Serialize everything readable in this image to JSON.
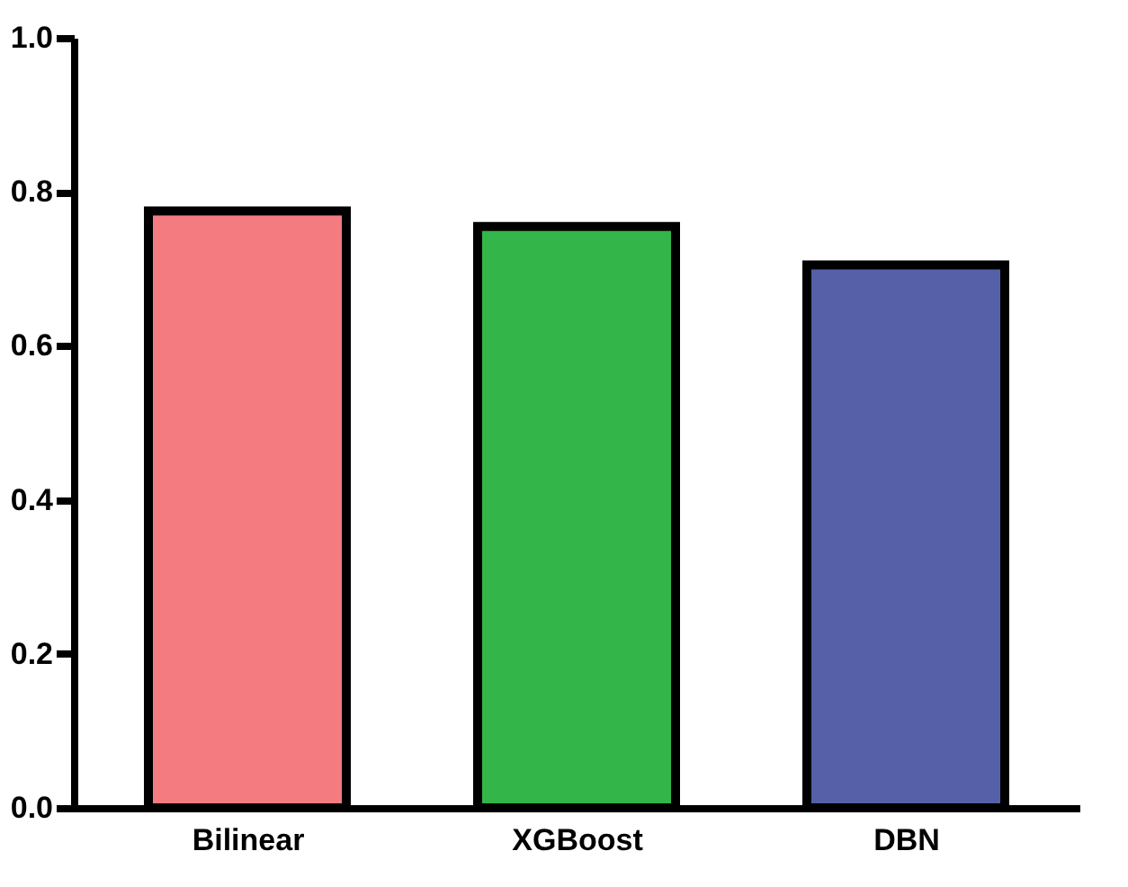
{
  "chart_data": {
    "type": "bar",
    "categories": [
      "Bilinear",
      "XGBoost",
      "DBN"
    ],
    "values": [
      0.775,
      0.755,
      0.705
    ],
    "colors": [
      "#f47c80",
      "#33b54a",
      "#5560a8"
    ],
    "ylim": [
      0,
      1.0
    ],
    "yticks": [
      {
        "value": 0,
        "label": "0.0"
      },
      {
        "value": 0.2,
        "label": "0.2"
      },
      {
        "value": 0.4,
        "label": "0.4"
      },
      {
        "value": 0.6,
        "label": "0.6"
      },
      {
        "value": 0.8,
        "label": "0.8"
      },
      {
        "value": 1.0,
        "label": "1.0"
      }
    ],
    "grid": false,
    "legend": false
  }
}
